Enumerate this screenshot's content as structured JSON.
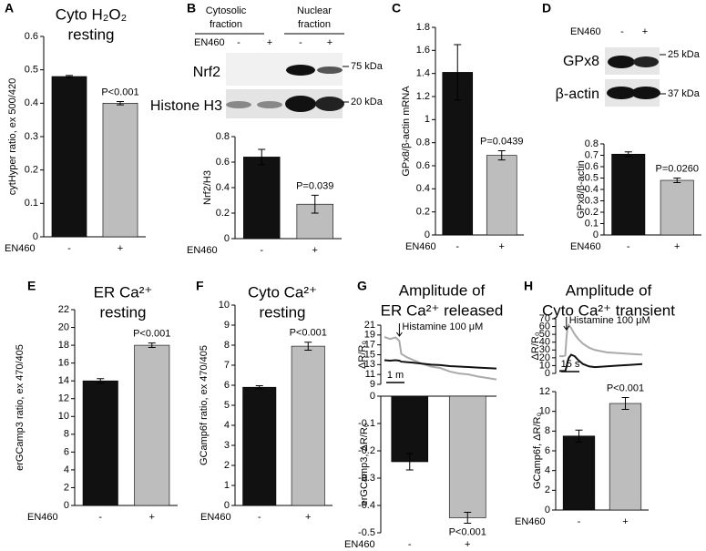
{
  "chart_data": [
    {
      "type": "bar",
      "panel": "A",
      "title": [
        "Cyto H₂O₂",
        "resting"
      ],
      "y_label": "cytHyper ratio, ex 500/420",
      "x_label": "EN460",
      "categories": [
        "-",
        "+"
      ],
      "values": [
        0.48,
        0.4
      ],
      "errors": [
        0.003,
        0.005
      ],
      "colors": [
        "#111111",
        "#bdbdbd"
      ],
      "ylim": [
        0,
        0.6
      ],
      "yticks": [
        0,
        0.1,
        0.2,
        0.3,
        0.4,
        0.5,
        0.6
      ],
      "annotation": {
        "text": "P<0.001",
        "index": 1
      }
    },
    {
      "type": "bar",
      "panel": "B",
      "y_label": "Nrf2/H3",
      "x_label": "EN460",
      "blot": {
        "columns": [
          [
            "Cytosolic",
            "fraction"
          ],
          [
            "Nuclear",
            "fraction"
          ]
        ],
        "lane_label": "EN460",
        "lanes": [
          "-",
          "+",
          "-",
          "+"
        ],
        "rows": [
          "Nrf2",
          "Histone H3"
        ],
        "markers": [
          "75 kDa",
          "20 kDa"
        ]
      },
      "categories": [
        "-",
        "+"
      ],
      "values": [
        0.64,
        0.27
      ],
      "errors": [
        0.06,
        0.07
      ],
      "colors": [
        "#111111",
        "#bdbdbd"
      ],
      "ylim": [
        0,
        0.8
      ],
      "yticks": [
        0,
        0.2,
        0.4,
        0.6,
        0.8
      ],
      "annotation": {
        "text": "P=0.039",
        "index": 1
      }
    },
    {
      "type": "bar",
      "panel": "C",
      "y_label": "GPx8/β-actin mRNA",
      "x_label": "EN460",
      "categories": [
        "-",
        "+"
      ],
      "values": [
        1.41,
        0.69
      ],
      "errors": [
        0.24,
        0.04
      ],
      "colors": [
        "#111111",
        "#bdbdbd"
      ],
      "ylim": [
        0,
        1.8
      ],
      "yticks": [
        0,
        0.2,
        0.4,
        0.6,
        0.8,
        1,
        1.2,
        1.4,
        1.6,
        1.8
      ],
      "annotation": {
        "text": "P=0.0439",
        "index": 1
      }
    },
    {
      "type": "bar",
      "panel": "D",
      "y_label": "GPx8/β-actin",
      "x_label": "EN460",
      "blot": {
        "lane_label": "EN460",
        "lanes": [
          "-",
          "+"
        ],
        "rows": [
          "GPx8",
          "β-actin"
        ],
        "markers": [
          "25 kDa",
          "37 kDa"
        ]
      },
      "categories": [
        "-",
        "+"
      ],
      "values": [
        0.71,
        0.48
      ],
      "errors": [
        0.02,
        0.02
      ],
      "colors": [
        "#111111",
        "#bdbdbd"
      ],
      "ylim": [
        0,
        0.8
      ],
      "yticks": [
        0,
        0.1,
        0.2,
        0.3,
        0.4,
        0.5,
        0.6,
        0.7,
        0.8
      ],
      "annotation": {
        "text": "P=0.0260",
        "index": 1
      }
    },
    {
      "type": "bar",
      "panel": "E",
      "title": [
        "ER Ca²⁺",
        "resting"
      ],
      "y_label": "erGCamp3 ratio, ex 470/405",
      "x_label": "EN460",
      "categories": [
        "-",
        "+"
      ],
      "values": [
        14.0,
        18.0
      ],
      "errors": [
        0.25,
        0.25
      ],
      "colors": [
        "#111111",
        "#bdbdbd"
      ],
      "ylim": [
        0,
        22
      ],
      "yticks": [
        0,
        2,
        4,
        6,
        8,
        10,
        12,
        14,
        16,
        18,
        20,
        22
      ],
      "annotation": {
        "text": "P<0.001",
        "index": 1
      }
    },
    {
      "type": "bar",
      "panel": "F",
      "title": [
        "Cyto Ca²⁺",
        "resting"
      ],
      "y_label": "GCamp6f ratio, ex 470/405",
      "x_label": "EN460",
      "categories": [
        "-",
        "+"
      ],
      "values": [
        5.9,
        7.95
      ],
      "errors": [
        0.08,
        0.2
      ],
      "colors": [
        "#111111",
        "#bdbdbd"
      ],
      "ylim": [
        0,
        10
      ],
      "yticks": [
        0,
        1,
        2,
        3,
        4,
        5,
        6,
        7,
        8,
        9,
        10
      ],
      "annotation": {
        "text": "P<0.001",
        "index": 1
      }
    },
    {
      "type": "line",
      "panel": "G",
      "title": [
        "Amplitude of",
        "ER Ca²⁺ released"
      ],
      "y_label": "ΔR/R₀",
      "annotation": {
        "text": "Histamine 100 μM",
        "x": 0.8
      },
      "scale_label": "1 m",
      "x": [
        0,
        0.3,
        0.6,
        0.8,
        0.9,
        1.2,
        1.5,
        2,
        2.5,
        3,
        3.5,
        4,
        4.5,
        5,
        5.5,
        6
      ],
      "xlim": [
        0,
        6
      ],
      "series": [
        {
          "color": "#aaaaaa",
          "values": [
            18.6,
            18.2,
            18.5,
            17.8,
            15.2,
            14.5,
            14,
            13.2,
            12.6,
            12.3,
            11.6,
            11.2,
            11,
            10.6,
            10.3,
            10
          ]
        },
        {
          "color": "#111111",
          "values": [
            13.9,
            13.8,
            13.9,
            13.8,
            13.6,
            13.5,
            13.4,
            13.2,
            13,
            12.9,
            12.7,
            12.6,
            12.5,
            12.4,
            12.3,
            12.2
          ]
        }
      ],
      "ylim": [
        9,
        21
      ],
      "yticks": [
        9,
        11,
        13,
        15,
        17,
        19,
        21
      ]
    },
    {
      "type": "bar",
      "y_label": "erGCamp3, ΔR/R₀",
      "x_label": "EN460",
      "categories": [
        "-",
        "+"
      ],
      "values": [
        -0.24,
        -0.445
      ],
      "errors": [
        0.03,
        0.02
      ],
      "colors": [
        "#111111",
        "#bdbdbd"
      ],
      "ylim": [
        -0.5,
        0
      ],
      "yticks": [
        -0.5,
        -0.4,
        -0.3,
        -0.2,
        -0.1,
        0
      ],
      "annotation": {
        "text": "P<0.001",
        "index": 1
      }
    },
    {
      "type": "line",
      "panel": "H",
      "title": [
        "Amplitude of",
        "Cyto Ca²⁺ transient"
      ],
      "y_label": "ΔR/R₀",
      "annotation": {
        "text": "Histamine 100 μM",
        "x": 6
      },
      "scale_label": "15 s",
      "x": [
        0,
        3,
        5,
        6,
        7,
        8,
        10,
        13,
        16,
        20,
        25,
        30,
        40,
        50,
        60,
        70
      ],
      "xlim": [
        0,
        70
      ],
      "series": [
        {
          "color": "#aaaaaa",
          "values": [
            22,
            22,
            23,
            45,
            60,
            62,
            58,
            50,
            44,
            38,
            33,
            30,
            27,
            26,
            25,
            24
          ]
        },
        {
          "color": "#111111",
          "values": [
            3,
            3,
            3,
            8,
            15,
            20,
            24,
            22,
            17,
            12,
            9,
            8,
            9,
            10,
            11,
            12
          ]
        }
      ],
      "ylim": [
        0,
        70
      ],
      "yticks": [
        0,
        10,
        20,
        30,
        40,
        50,
        60,
        70
      ]
    },
    {
      "type": "bar",
      "y_label": "GCamp6f, ΔR/R₀",
      "x_label": "EN460",
      "categories": [
        "-",
        "+"
      ],
      "values": [
        7.5,
        10.8
      ],
      "errors": [
        0.6,
        0.6
      ],
      "colors": [
        "#111111",
        "#bdbdbd"
      ],
      "ylim": [
        0,
        12
      ],
      "yticks": [
        0,
        2,
        4,
        6,
        8,
        10,
        12
      ],
      "annotation": {
        "text": "P<0.001",
        "index": 1
      }
    }
  ]
}
